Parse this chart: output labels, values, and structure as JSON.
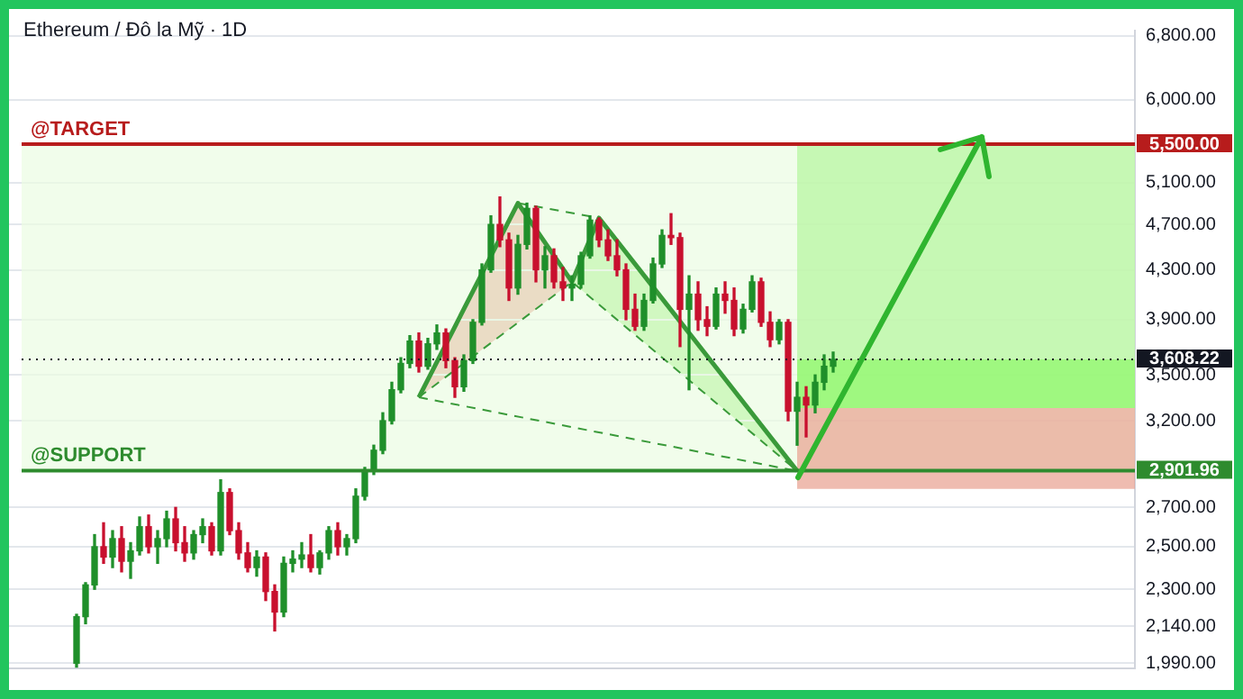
{
  "chart_data": {
    "type": "candlestick",
    "title": "Ethereum / Đô la Mỹ · 1D",
    "categories": [
      null,
      null,
      null,
      null,
      null,
      null,
      null,
      null,
      null,
      null,
      null,
      null,
      null,
      null,
      null,
      null,
      null,
      null,
      null,
      null,
      null,
      null,
      null,
      null,
      null,
      null,
      null,
      null,
      null,
      null,
      null,
      null,
      null,
      null,
      null,
      null,
      null,
      null,
      null,
      null,
      null,
      null,
      null,
      null,
      null,
      null,
      null,
      null,
      null,
      null,
      null,
      null,
      null,
      null,
      null,
      null,
      null,
      null,
      null,
      null,
      null,
      null,
      null,
      null,
      null,
      null,
      null,
      null,
      null,
      null,
      null,
      null,
      null,
      null,
      null,
      null,
      null,
      null,
      null,
      null,
      null,
      null,
      null,
      null,
      null,
      null,
      null,
      null,
      null,
      null,
      null,
      null,
      null,
      null,
      null,
      null,
      null,
      null,
      null,
      null,
      null,
      null,
      null,
      null,
      null,
      null,
      null,
      null,
      null,
      null,
      null,
      null,
      null,
      null,
      null,
      null,
      null,
      null,
      null,
      null,
      null,
      null,
      null,
      null,
      null
    ],
    "ohlc": [
      null,
      null,
      null,
      null,
      null,
      null,
      null,
      [
        1990,
        2190,
        1975,
        2180
      ],
      [
        2180,
        2330,
        2150,
        2320
      ],
      [
        2320,
        2560,
        2300,
        2500
      ],
      [
        2500,
        2620,
        2420,
        2450
      ],
      [
        2450,
        2580,
        2400,
        2540
      ],
      [
        2540,
        2600,
        2380,
        2430
      ],
      [
        2430,
        2520,
        2350,
        2480
      ],
      [
        2480,
        2650,
        2460,
        2600
      ],
      [
        2600,
        2660,
        2470,
        2500
      ],
      [
        2500,
        2580,
        2420,
        2540
      ],
      [
        2540,
        2680,
        2500,
        2640
      ],
      [
        2640,
        2700,
        2480,
        2520
      ],
      [
        2520,
        2600,
        2430,
        2470
      ],
      [
        2470,
        2580,
        2440,
        2560
      ],
      [
        2560,
        2640,
        2520,
        2600
      ],
      [
        2600,
        2620,
        2460,
        2480
      ],
      [
        2480,
        2850,
        2460,
        2780
      ],
      [
        2780,
        2800,
        2560,
        2580
      ],
      [
        2580,
        2620,
        2440,
        2470
      ],
      [
        2470,
        2520,
        2380,
        2400
      ],
      [
        2400,
        2480,
        2360,
        2450
      ],
      [
        2450,
        2470,
        2250,
        2290
      ],
      [
        2290,
        2320,
        2120,
        2200
      ],
      [
        2200,
        2450,
        2180,
        2420
      ],
      [
        2420,
        2480,
        2380,
        2440
      ],
      [
        2440,
        2520,
        2400,
        2460
      ],
      [
        2460,
        2560,
        2380,
        2400
      ],
      [
        2400,
        2480,
        2370,
        2470
      ],
      [
        2470,
        2600,
        2440,
        2580
      ],
      [
        2580,
        2620,
        2460,
        2500
      ],
      [
        2500,
        2560,
        2460,
        2540
      ],
      [
        2540,
        2800,
        2520,
        2760
      ],
      [
        2760,
        2920,
        2740,
        2900
      ],
      [
        2900,
        3050,
        2880,
        3020
      ],
      [
        3020,
        3250,
        3000,
        3200
      ],
      [
        3200,
        3450,
        3180,
        3400
      ],
      [
        3400,
        3620,
        3380,
        3580
      ],
      [
        3580,
        3780,
        3550,
        3740
      ],
      [
        3740,
        3800,
        3520,
        3560
      ],
      [
        3560,
        3760,
        3540,
        3720
      ],
      [
        3720,
        3860,
        3680,
        3800
      ],
      [
        3800,
        3830,
        3550,
        3600
      ],
      [
        3600,
        3620,
        3350,
        3420
      ],
      [
        3420,
        3640,
        3390,
        3600
      ],
      [
        3600,
        3900,
        3580,
        3880
      ],
      [
        3880,
        4350,
        3860,
        4300
      ],
      [
        4300,
        4780,
        4280,
        4700
      ],
      [
        4700,
        4960,
        4500,
        4560
      ],
      [
        4560,
        4620,
        4050,
        4150
      ],
      [
        4150,
        4600,
        4100,
        4520
      ],
      [
        4520,
        4900,
        4480,
        4850
      ],
      [
        4850,
        4870,
        4200,
        4300
      ],
      [
        4300,
        4500,
        4150,
        4420
      ],
      [
        4420,
        4480,
        4150,
        4200
      ],
      [
        4200,
        4320,
        4050,
        4150
      ],
      [
        4150,
        4250,
        4050,
        4180
      ],
      [
        4180,
        4450,
        4150,
        4420
      ],
      [
        4420,
        4780,
        4400,
        4740
      ],
      [
        4740,
        4760,
        4500,
        4560
      ],
      [
        4560,
        4650,
        4380,
        4420
      ],
      [
        4420,
        4560,
        4250,
        4300
      ],
      [
        4300,
        4350,
        3900,
        3980
      ],
      [
        3980,
        4100,
        3820,
        3850
      ],
      [
        3850,
        4100,
        3820,
        4050
      ],
      [
        4050,
        4400,
        4030,
        4350
      ],
      [
        4350,
        4650,
        4320,
        4600
      ],
      [
        4600,
        4800,
        4520,
        4580
      ],
      [
        4580,
        4620,
        3700,
        3980
      ],
      [
        3980,
        4250,
        3400,
        4100
      ],
      [
        4100,
        4200,
        3820,
        3900
      ],
      [
        3900,
        4000,
        3780,
        3850
      ],
      [
        3850,
        4150,
        3830,
        4100
      ],
      [
        4100,
        4200,
        3950,
        4050
      ],
      [
        4050,
        4150,
        3780,
        3830
      ],
      [
        3830,
        4020,
        3800,
        3980
      ],
      [
        3980,
        4250,
        3960,
        4200
      ],
      [
        4200,
        4230,
        3850,
        3880
      ],
      [
        3880,
        3960,
        3700,
        3750
      ],
      [
        3750,
        3900,
        3720,
        3880
      ],
      [
        3880,
        3900,
        3200,
        3260
      ],
      [
        3260,
        3450,
        3050,
        3350
      ],
      [
        3350,
        3420,
        3100,
        3300
      ],
      [
        3300,
        3500,
        3250,
        3450
      ],
      [
        3450,
        3640,
        3400,
        3560
      ],
      [
        3560,
        3660,
        3520,
        3608.22
      ],
      null,
      null,
      null,
      null,
      null,
      null,
      null,
      null,
      null,
      null,
      null,
      null,
      null,
      null,
      null,
      null,
      null,
      null,
      null,
      null,
      null,
      null,
      null,
      null,
      null,
      null,
      null,
      null,
      null,
      null,
      null,
      null,
      null
    ],
    "series": [
      {
        "type": "line",
        "color": "#3a9a3a",
        "values": [
          null,
          null,
          null,
          null,
          null,
          null,
          null,
          null,
          null,
          null,
          null,
          null,
          null,
          null,
          null,
          null,
          null,
          null,
          null,
          null,
          null,
          null,
          null,
          null,
          null,
          null,
          null,
          null,
          null,
          null,
          null,
          null,
          null,
          null,
          null,
          null,
          null,
          null,
          null,
          null,
          null,
          null,
          null,
          null,
          null,
          3350,
          null,
          null,
          null,
          null,
          null,
          null,
          null,
          null,
          null,
          null,
          4900,
          null,
          null,
          null,
          null,
          null,
          4200,
          null,
          null,
          4760,
          null,
          null,
          null,
          null,
          null,
          null,
          null,
          null,
          null,
          null,
          null,
          null,
          null,
          null,
          null,
          null,
          null,
          null,
          null,
          null,
          null,
          2900,
          null,
          null,
          null,
          null,
          null,
          null,
          null,
          null,
          null,
          null,
          null,
          null,
          null,
          null,
          null,
          null,
          null,
          null,
          null,
          null,
          null,
          null,
          null,
          null,
          null,
          null,
          null,
          null,
          null,
          null,
          null,
          null,
          null,
          null,
          null,
          null,
          null
        ]
      },
      {
        "type": "line",
        "color": "#3a9a3a",
        "line_style": "dashed",
        "values": [
          null,
          null,
          null,
          null,
          null,
          null,
          null,
          null,
          null,
          null,
          null,
          null,
          null,
          null,
          null,
          null,
          null,
          null,
          null,
          null,
          null,
          null,
          null,
          null,
          null,
          null,
          null,
          null,
          null,
          null,
          null,
          null,
          null,
          null,
          null,
          null,
          null,
          null,
          null,
          null,
          null,
          null,
          null,
          null,
          null,
          3350,
          null,
          null,
          null,
          null,
          null,
          null,
          null,
          null,
          null,
          null,
          null,
          null,
          null,
          null,
          null,
          null,
          4200,
          null,
          null,
          null,
          null,
          null,
          null,
          null,
          null,
          null,
          null,
          null,
          null,
          null,
          null,
          null,
          null,
          null,
          null,
          null,
          null,
          null,
          null,
          null,
          null,
          2900,
          null,
          null,
          null,
          null,
          null,
          null,
          null,
          null,
          null,
          null,
          null,
          null,
          null,
          null,
          null,
          null,
          null,
          null,
          null,
          null,
          null,
          null,
          null,
          null,
          null,
          null,
          null,
          null,
          null,
          null,
          null,
          null,
          null,
          null,
          null,
          null,
          null
        ]
      },
      {
        "type": "line",
        "color": "#3a9a3a",
        "line_style": "dashed",
        "values": [
          null,
          null,
          null,
          null,
          null,
          null,
          null,
          null,
          null,
          null,
          null,
          null,
          null,
          null,
          null,
          null,
          null,
          null,
          null,
          null,
          null,
          null,
          null,
          null,
          null,
          null,
          null,
          null,
          null,
          null,
          null,
          null,
          null,
          null,
          null,
          null,
          null,
          null,
          null,
          null,
          null,
          null,
          null,
          null,
          null,
          3350,
          null,
          null,
          null,
          null,
          null,
          null,
          null,
          null,
          null,
          null,
          null,
          null,
          null,
          null,
          null,
          null,
          null,
          null,
          null,
          null,
          null,
          null,
          null,
          null,
          null,
          null,
          null,
          null,
          null,
          null,
          null,
          null,
          null,
          null,
          null,
          null,
          null,
          null,
          null,
          null,
          null,
          2900,
          null,
          null,
          null,
          null,
          null,
          null,
          null,
          null,
          null,
          null,
          null,
          null,
          null,
          null,
          null,
          null,
          null,
          null,
          null,
          null,
          null,
          null,
          null,
          null,
          null,
          null,
          null,
          null,
          null,
          null,
          null,
          null,
          null,
          null,
          null,
          null,
          null
        ]
      },
      {
        "type": "line",
        "color": "#3a9a3a",
        "line_style": "dashed",
        "values": [
          null,
          null,
          null,
          null,
          null,
          null,
          null,
          null,
          null,
          null,
          null,
          null,
          null,
          null,
          null,
          null,
          null,
          null,
          null,
          null,
          null,
          null,
          null,
          null,
          null,
          null,
          null,
          null,
          null,
          null,
          null,
          null,
          null,
          null,
          null,
          null,
          null,
          null,
          null,
          null,
          null,
          null,
          null,
          null,
          null,
          null,
          null,
          null,
          null,
          null,
          null,
          null,
          null,
          null,
          null,
          null,
          4900,
          null,
          null,
          null,
          null,
          null,
          null,
          null,
          null,
          4760,
          null,
          null,
          null,
          null,
          null,
          null,
          null,
          null,
          null,
          null,
          null,
          null,
          null,
          null,
          null,
          null,
          null,
          null,
          null,
          null,
          null,
          null,
          null,
          null,
          null,
          null,
          null,
          null,
          null,
          null,
          null,
          null,
          null,
          null,
          null,
          null,
          null,
          null,
          null,
          null,
          null,
          null,
          null,
          null,
          null,
          null,
          null,
          null,
          null,
          null,
          null,
          null,
          null,
          null,
          null,
          null,
          null,
          null,
          null
        ]
      }
    ],
    "log": "y",
    "ylim": [
      1970,
      6870
    ],
    "yticks": [
      {
        "value": 6800,
        "label": "6,800.00"
      },
      {
        "value": 6000,
        "label": "6,000.00"
      },
      {
        "value": 5100,
        "label": "5,100.00"
      },
      {
        "value": 4700,
        "label": "4,700.00"
      },
      {
        "value": 4300,
        "label": "4,300.00"
      },
      {
        "value": 3900,
        "label": "3,900.00"
      },
      {
        "value": 3500,
        "label": "3,500.00"
      },
      {
        "value": 3200,
        "label": "3,200.00"
      },
      {
        "value": 2700,
        "label": "2,700.00"
      },
      {
        "value": 2500,
        "label": "2,500.00"
      },
      {
        "value": 2300,
        "label": "2,300.00"
      },
      {
        "value": 2140,
        "label": "2,140.00"
      },
      {
        "value": 1990,
        "label": "1,990.00"
      }
    ],
    "grid": "y",
    "legend": false,
    "bands": [
      {
        "axis": "y",
        "from": 2901.96,
        "to": 5500,
        "color": "#ebfce3"
      },
      {
        "axis": "y",
        "from": 3280,
        "to": 5500,
        "color": "#b3f59d"
      },
      {
        "axis": "y",
        "from": 3280,
        "to": 3608.22,
        "color": "#8ef86a"
      },
      {
        "axis": "y",
        "from": 2800,
        "to": 3280,
        "color": "#e8a08f"
      }
    ],
    "ref_lines": [
      {
        "axis": "y",
        "value": 5500,
        "label": "5,500.00",
        "color": "#b71c1c",
        "line_style": "solid"
      },
      {
        "axis": "y",
        "value": 2901.96,
        "label": "2,901.96",
        "color": "#2e8b2e",
        "line_style": "solid"
      },
      {
        "axis": "y",
        "value": 3608.22,
        "label": "3,608.22",
        "color": "#131722",
        "line_style": "dotted"
      }
    ],
    "annotations": [
      {
        "text": "@TARGET",
        "y": 5500
      },
      {
        "text": "@SUPPORT",
        "y": 2901.96
      }
    ]
  }
}
